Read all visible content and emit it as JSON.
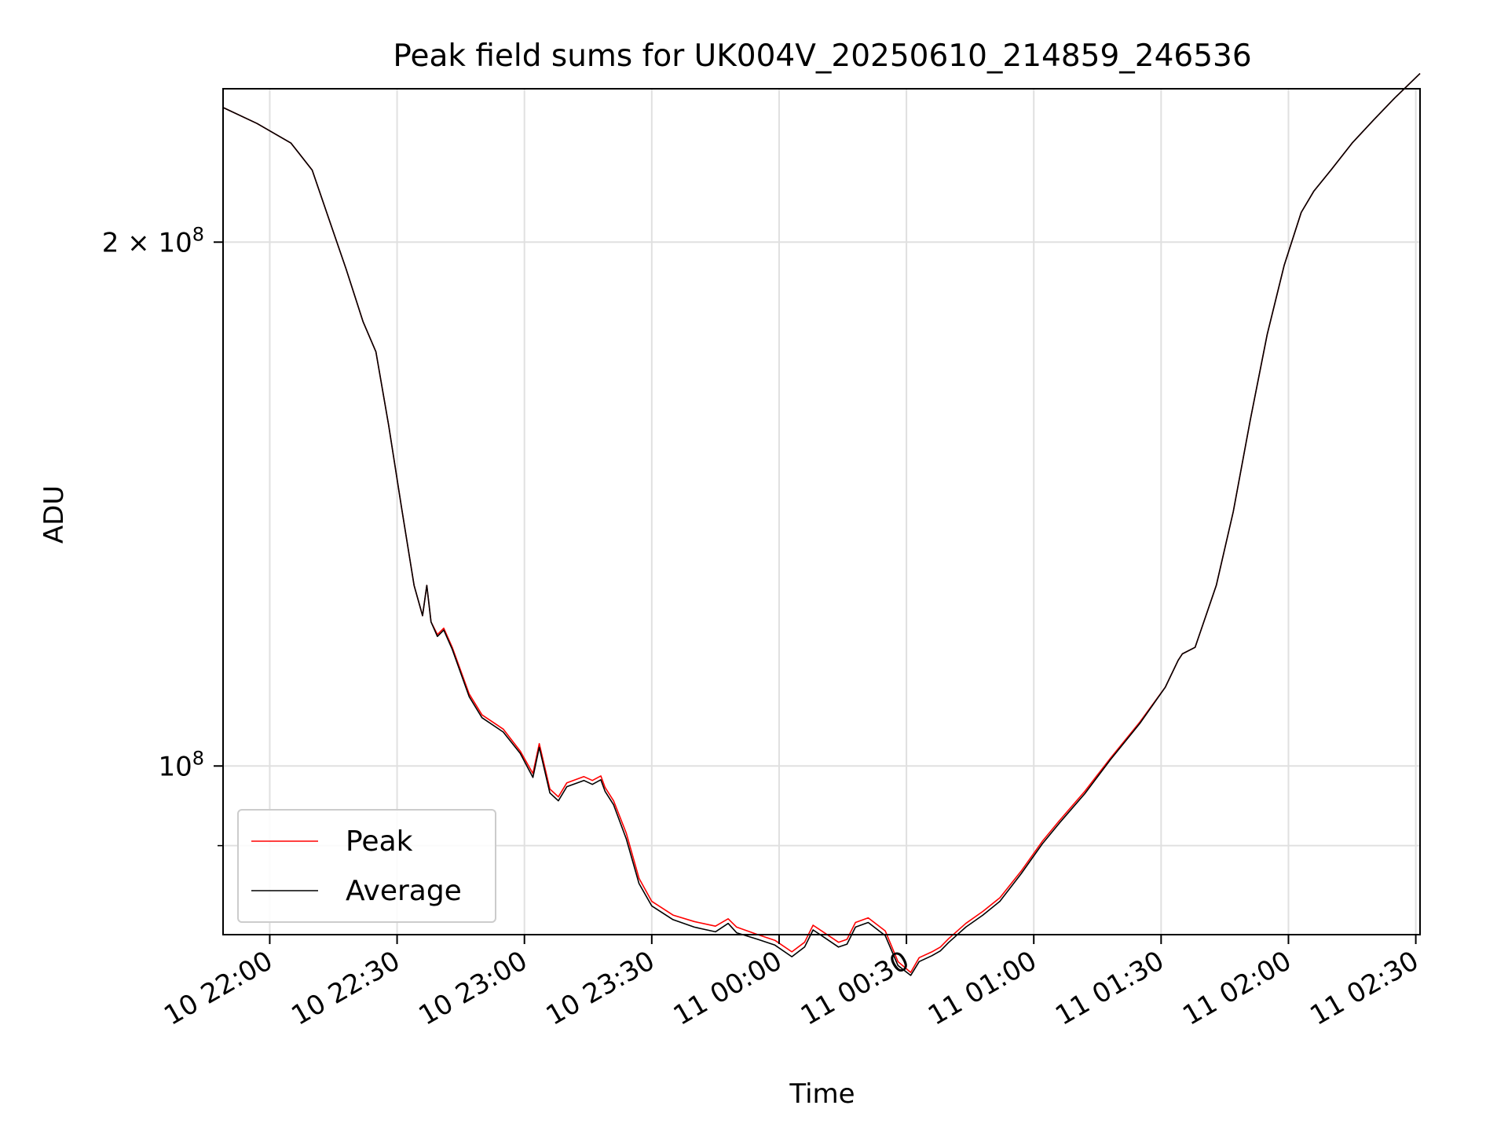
{
  "chart_data": {
    "type": "line",
    "title": "Peak field sums for UK004V_20250610_214859_246536",
    "xlabel": "Time",
    "ylabel": "ADU",
    "y_scale": "log",
    "grid": true,
    "legend_position": "lower-left",
    "xlim": [
      "2025-06-10 21:49:00",
      "2025-06-11 02:31:00"
    ],
    "ylim": [
      80000000,
      245000000
    ],
    "x_ticks": [
      {
        "value": "2025-06-10 22:00:00",
        "label": "10 22:00"
      },
      {
        "value": "2025-06-10 22:30:00",
        "label": "10 22:30"
      },
      {
        "value": "2025-06-10 23:00:00",
        "label": "10 23:00"
      },
      {
        "value": "2025-06-10 23:30:00",
        "label": "10 23:30"
      },
      {
        "value": "2025-06-11 00:00:00",
        "label": "11 00:00"
      },
      {
        "value": "2025-06-11 00:30:00",
        "label": "11 00:30"
      },
      {
        "value": "2025-06-11 01:00:00",
        "label": "11 01:00"
      },
      {
        "value": "2025-06-11 01:30:00",
        "label": "11 01:30"
      },
      {
        "value": "2025-06-11 02:00:00",
        "label": "11 02:00"
      },
      {
        "value": "2025-06-11 02:30:00",
        "label": "11 02:30"
      }
    ],
    "y_major_ticks": [
      {
        "value": 100000000,
        "base": "10",
        "exp": "8"
      },
      {
        "value": 200000000,
        "base": "2 × 10",
        "exp": "8"
      }
    ],
    "y_minor_ticks": [
      90000000,
      300000000
    ],
    "x": [
      "2025-06-10 21:49:00",
      "2025-06-10 21:57:00",
      "2025-06-10 22:05:00",
      "2025-06-10 22:10:00",
      "2025-06-10 22:14:00",
      "2025-06-10 22:18:00",
      "2025-06-10 22:22:00",
      "2025-06-10 22:25:00",
      "2025-06-10 22:28:00",
      "2025-06-10 22:31:00",
      "2025-06-10 22:34:00",
      "2025-06-10 22:36:00",
      "2025-06-10 22:37:00",
      "2025-06-10 22:38:00",
      "2025-06-10 22:39:30",
      "2025-06-10 22:41:00",
      "2025-06-10 22:43:00",
      "2025-06-10 22:47:00",
      "2025-06-10 22:50:00",
      "2025-06-10 22:55:00",
      "2025-06-10 22:59:00",
      "2025-06-10 23:02:00",
      "2025-06-10 23:03:30",
      "2025-06-10 23:06:00",
      "2025-06-10 23:08:00",
      "2025-06-10 23:10:00",
      "2025-06-10 23:14:00",
      "2025-06-10 23:16:00",
      "2025-06-10 23:18:00",
      "2025-06-10 23:19:00",
      "2025-06-10 23:21:00",
      "2025-06-10 23:24:00",
      "2025-06-10 23:27:00",
      "2025-06-10 23:30:00",
      "2025-06-10 23:35:00",
      "2025-06-10 23:40:00",
      "2025-06-10 23:45:00",
      "2025-06-10 23:48:00",
      "2025-06-10 23:50:00",
      "2025-06-10 23:55:00",
      "2025-06-10 23:59:00",
      "2025-06-11 00:03:00",
      "2025-06-11 00:06:00",
      "2025-06-11 00:08:00",
      "2025-06-11 00:10:00",
      "2025-06-11 00:14:00",
      "2025-06-11 00:16:00",
      "2025-06-11 00:18:00",
      "2025-06-11 00:21:00",
      "2025-06-11 00:25:00",
      "2025-06-11 00:28:00",
      "2025-06-11 00:31:00",
      "2025-06-11 00:33:00",
      "2025-06-11 00:36:00",
      "2025-06-11 00:38:00",
      "2025-06-11 00:40:00",
      "2025-06-11 00:44:00",
      "2025-06-11 00:48:00",
      "2025-06-11 00:52:00",
      "2025-06-11 00:57:00",
      "2025-06-11 01:02:00",
      "2025-06-11 01:06:00",
      "2025-06-11 01:12:00",
      "2025-06-11 01:18:00",
      "2025-06-11 01:25:00",
      "2025-06-11 01:31:00",
      "2025-06-11 01:34:00",
      "2025-06-11 01:35:00",
      "2025-06-11 01:38:00",
      "2025-06-11 01:43:00",
      "2025-06-11 01:47:00",
      "2025-06-11 01:51:00",
      "2025-06-11 01:55:00",
      "2025-06-11 01:59:00",
      "2025-06-11 02:03:00",
      "2025-06-11 02:06:00",
      "2025-06-11 02:10:00",
      "2025-06-11 02:15:00",
      "2025-06-11 02:20:00",
      "2025-06-11 02:25:00",
      "2025-06-11 02:31:00"
    ],
    "series": [
      {
        "name": "Peak",
        "color": "#ff0000",
        "values": [
          239000000,
          234000000,
          228000000,
          220000000,
          206000000,
          193000000,
          180000000,
          173000000,
          157000000,
          141000000,
          127000000,
          122000000,
          127000000,
          121000000,
          119000000,
          120000000,
          117000000,
          110000000,
          107000000,
          105000000,
          102000000,
          99000000,
          103000000,
          97000000,
          96000000,
          97800000,
          98600000,
          98100000,
          98700000,
          97200000,
          95500000,
          91500000,
          86200000,
          83600000,
          82100000,
          81400000,
          80900000,
          81700000,
          80800000,
          80000000,
          79400000,
          78200000,
          79200000,
          81000000,
          80400000,
          79200000,
          79500000,
          81300000,
          81800000,
          80400000,
          77200000,
          76100000,
          77600000,
          78200000,
          78700000,
          79600000,
          81200000,
          82500000,
          84000000,
          87000000,
          90500000,
          93000000,
          96700000,
          101000000,
          106000000,
          111000000,
          115000000,
          116000000,
          117000000,
          127000000,
          140000000,
          158000000,
          177000000,
          194000000,
          208000000,
          214000000,
          220000000,
          228000000,
          235000000,
          242000000,
          250000000
        ]
      },
      {
        "name": "Average",
        "color": "#000000",
        "values": [
          239000000,
          234000000,
          228000000,
          220000000,
          206000000,
          193000000,
          180000000,
          173000000,
          157000000,
          141000000,
          127000000,
          122000000,
          127000000,
          121000000,
          118700000,
          119700000,
          116700000,
          109600000,
          106600000,
          104600000,
          101700000,
          98500000,
          102500000,
          96500000,
          95500000,
          97300000,
          98100000,
          97600000,
          98200000,
          96700000,
          95000000,
          90800000,
          85600000,
          83100000,
          81600000,
          80800000,
          80300000,
          81200000,
          80200000,
          79500000,
          78900000,
          77700000,
          78700000,
          80500000,
          79900000,
          78700000,
          79000000,
          80800000,
          81300000,
          79900000,
          76800000,
          75800000,
          77200000,
          77800000,
          78300000,
          79200000,
          80800000,
          82100000,
          83600000,
          86700000,
          90200000,
          92700000,
          96400000,
          100800000,
          105800000,
          111000000,
          115000000,
          116000000,
          117000000,
          127000000,
          140000000,
          158000000,
          177000000,
          194000000,
          208000000,
          214000000,
          220000000,
          228000000,
          235000000,
          242000000,
          250000000
        ]
      }
    ]
  }
}
